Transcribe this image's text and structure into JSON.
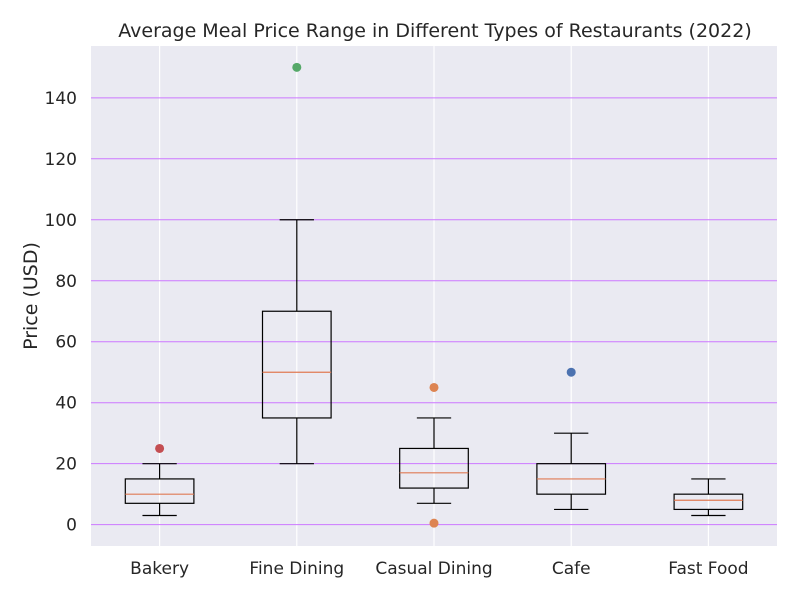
{
  "chart_data": {
    "type": "box",
    "title": "Average Meal Price Range in Different Types of Restaurants (2022)",
    "xlabel": "",
    "ylabel": "Price (USD)",
    "categories": [
      "Bakery",
      "Fine Dining",
      "Casual Dining",
      "Cafe",
      "Fast Food"
    ],
    "boxes": [
      {
        "category": "Bakery",
        "whisker_low": 3,
        "q1": 7,
        "median": 10,
        "q3": 15,
        "whisker_high": 20,
        "outliers": [
          25
        ]
      },
      {
        "category": "Fine Dining",
        "whisker_low": 20,
        "q1": 35,
        "median": 50,
        "q3": 70,
        "whisker_high": 100,
        "outliers": [
          150
        ]
      },
      {
        "category": "Casual Dining",
        "whisker_low": 7,
        "q1": 12,
        "median": 17,
        "q3": 25,
        "whisker_high": 35,
        "outliers": [
          0.5,
          45
        ]
      },
      {
        "category": "Cafe",
        "whisker_low": 5,
        "q1": 10,
        "median": 15,
        "q3": 20,
        "whisker_high": 30,
        "outliers": [
          50
        ]
      },
      {
        "category": "Fast Food",
        "whisker_low": 3,
        "q1": 5,
        "median": 8,
        "q3": 10,
        "whisker_high": 15,
        "outliers": []
      }
    ],
    "yticks": [
      0,
      20,
      40,
      60,
      80,
      100,
      120,
      140
    ],
    "ylim": [
      -7,
      157
    ],
    "grid": true,
    "colors": {
      "plot_background": "#eaeaf2",
      "y_grid": "#cc77ff",
      "x_grid": "#ffffff",
      "box_line": "#000000",
      "median_line": "#e07b54",
      "outliers": [
        "#c44e52",
        "#55a868",
        "#dd8452",
        "#4c72b0"
      ]
    }
  }
}
